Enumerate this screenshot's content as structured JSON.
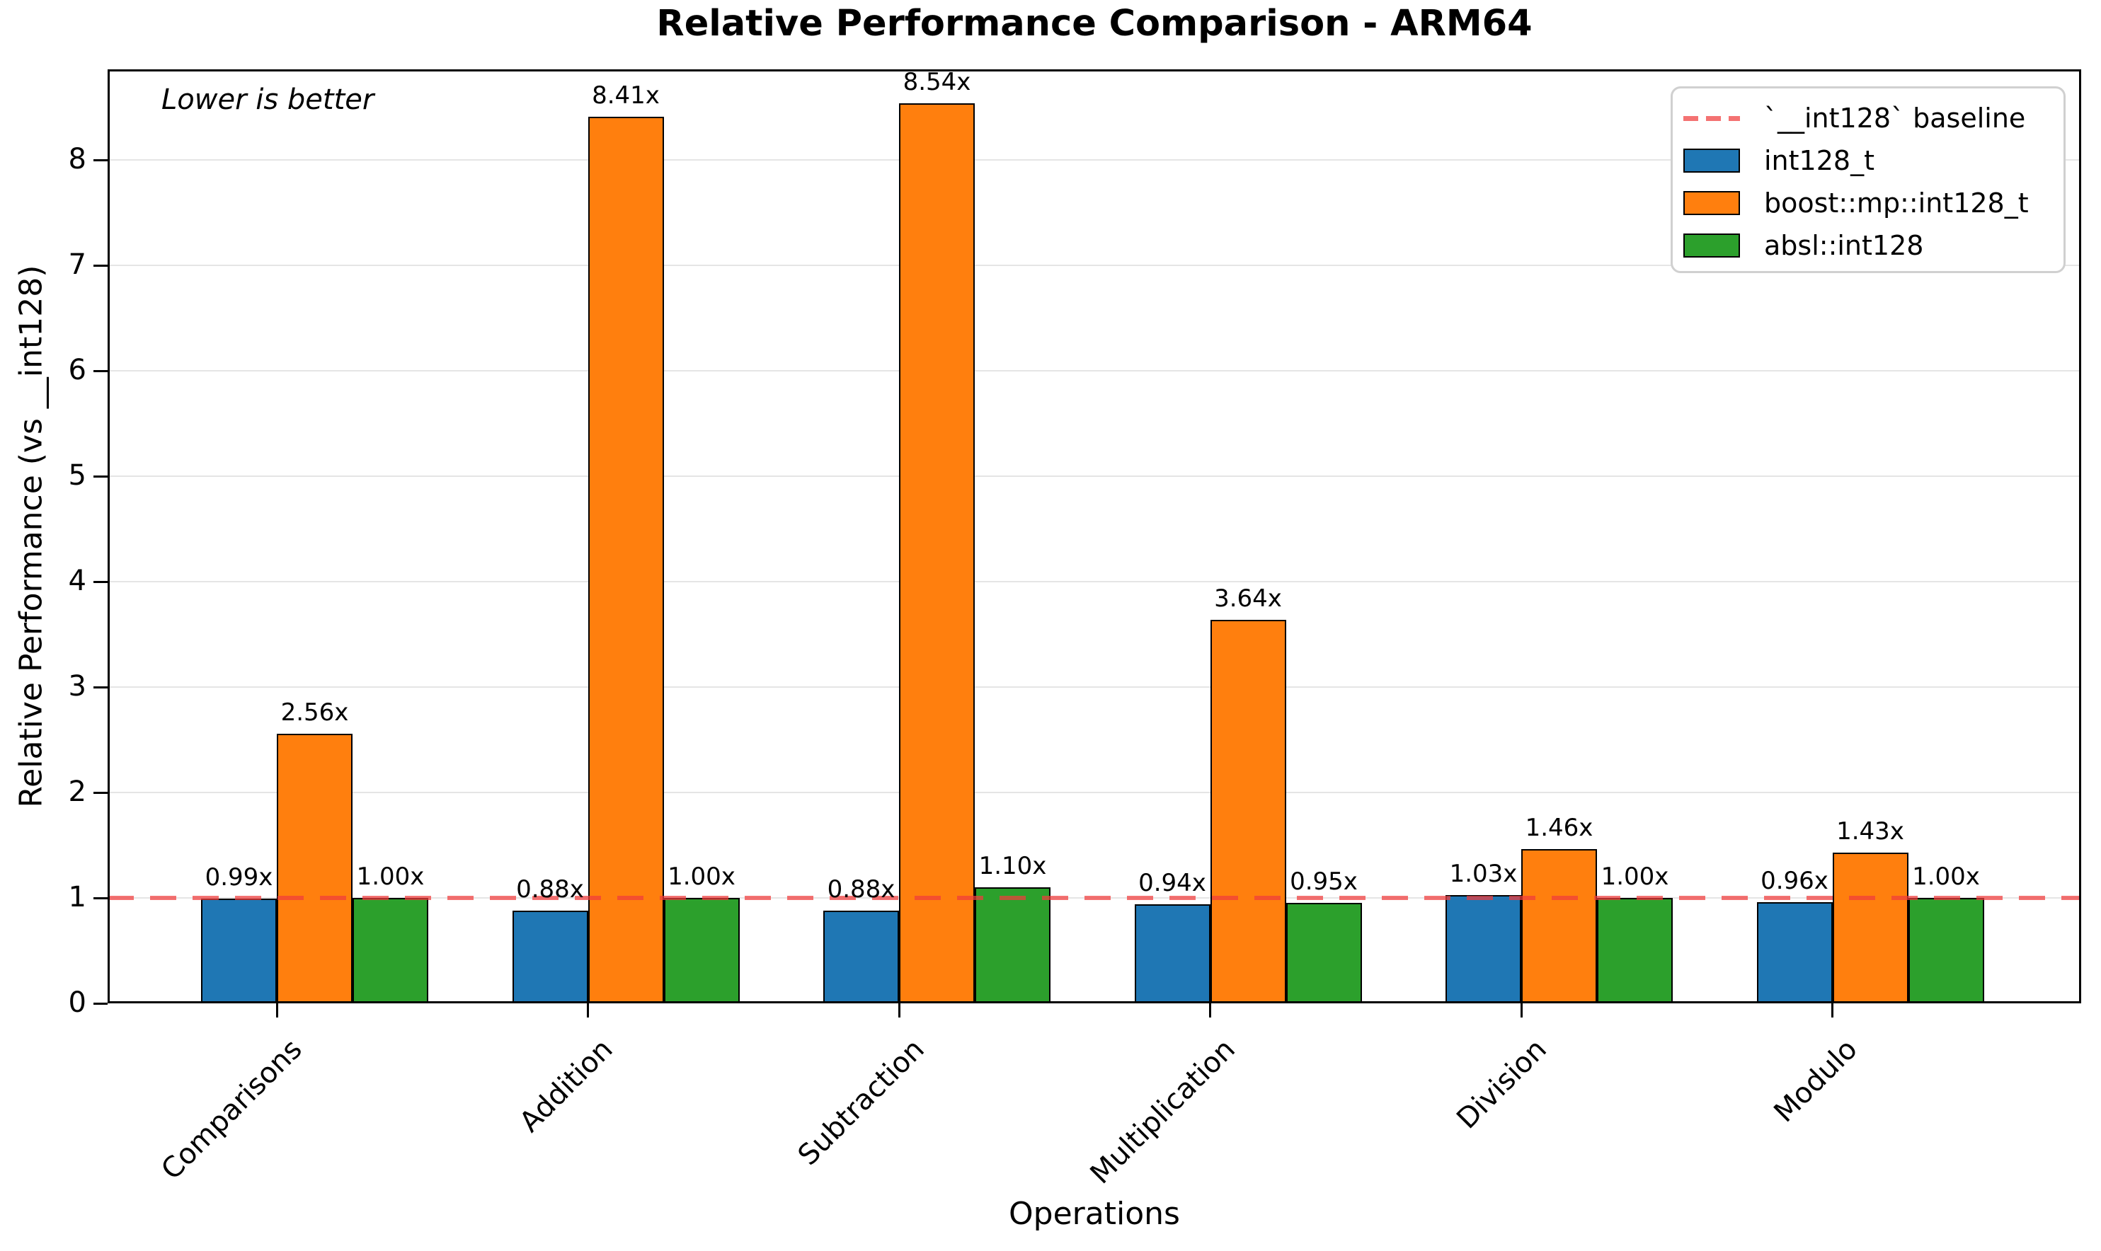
{
  "chart_data": {
    "type": "bar",
    "title": "Relative Performance Comparison - ARM64",
    "xlabel": "Operations",
    "ylabel": "Relative Performance (vs __int128)",
    "annotation": "Lower is better",
    "categories": [
      "Comparisons",
      "Addition",
      "Subtraction",
      "Multiplication",
      "Division",
      "Modulo"
    ],
    "series": [
      {
        "name": "int128_t",
        "color": "#1f77b4",
        "values": [
          0.99,
          0.88,
          0.88,
          0.94,
          1.03,
          0.96
        ]
      },
      {
        "name": "boost::mp::int128_t",
        "color": "#ff7f0e",
        "values": [
          2.56,
          8.41,
          8.54,
          3.64,
          1.46,
          1.43
        ]
      },
      {
        "name": "absl::int128",
        "color": "#2ca02c",
        "values": [
          1.0,
          1.0,
          1.1,
          0.95,
          1.0,
          1.0
        ]
      }
    ],
    "value_label_suffix": "x",
    "value_label_decimals": 2,
    "baseline": {
      "value": 1.0,
      "label": "`__int128` baseline",
      "color": "rgba(240,60,60,0.72)",
      "style": "dashed"
    },
    "ylim": [
      0,
      8.86
    ],
    "yticks": [
      0,
      1,
      2,
      3,
      4,
      5,
      6,
      7,
      8
    ],
    "grid": true,
    "legend_position": "upper right"
  }
}
